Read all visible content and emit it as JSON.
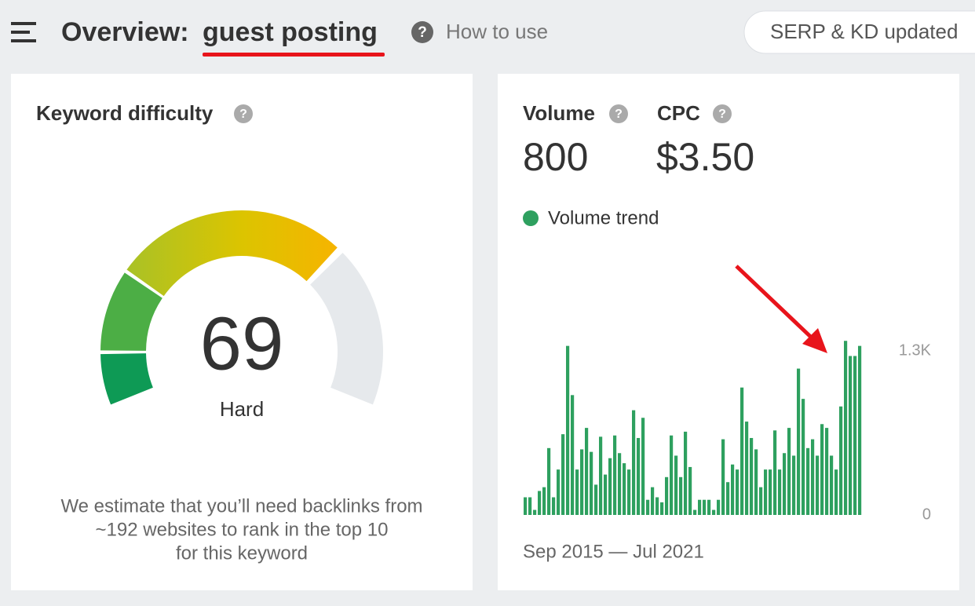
{
  "header": {
    "title_prefix": "Overview:",
    "keyword": "guest posting",
    "help_icon": "?",
    "help": "How to use",
    "status": "SERP & KD updated"
  },
  "keyword_difficulty": {
    "title": "Keyword difficulty",
    "score": 69,
    "label": "Hard",
    "note_lines": [
      "We estimate that you’ll need backlinks from",
      "~192 websites to rank in the top 10",
      "for this keyword"
    ]
  },
  "metrics": {
    "volume_label": "Volume",
    "volume": 800,
    "cpc_label": "CPC",
    "cpc": "$3.50"
  },
  "chart_data": {
    "type": "bar",
    "title": "Volume trend",
    "color": "#2ea05f",
    "values": [
      140,
      140,
      40,
      190,
      220,
      530,
      140,
      360,
      640,
      1340,
      950,
      360,
      520,
      690,
      500,
      240,
      620,
      320,
      450,
      630,
      490,
      410,
      360,
      830,
      610,
      770,
      120,
      220,
      140,
      100,
      300,
      630,
      470,
      300,
      660,
      380,
      40,
      120,
      120,
      120,
      40,
      120,
      600,
      260,
      400,
      360,
      1010,
      740,
      610,
      520,
      220,
      360,
      360,
      670,
      360,
      490,
      690,
      470,
      1160,
      920,
      530,
      600,
      470,
      720,
      690,
      470,
      360,
      860,
      1380,
      1260,
      1260,
      1340
    ],
    "ylim": [
      0,
      1400
    ],
    "yticks": [
      0,
      {
        "value": 1300,
        "label": "1.3K"
      }
    ],
    "period": "Sep 2015 — Jul 2021"
  }
}
